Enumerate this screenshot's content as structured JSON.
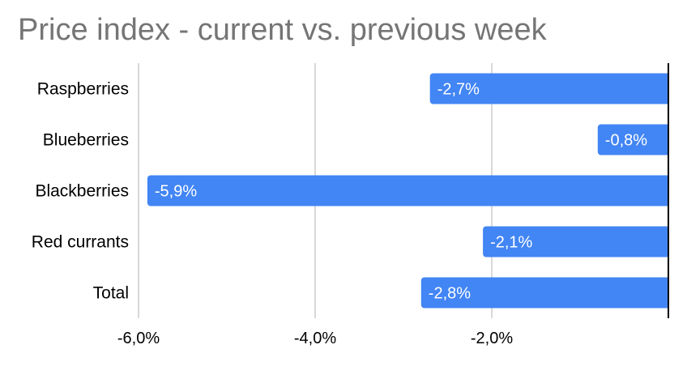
{
  "chart_data": {
    "type": "bar",
    "orientation": "horizontal",
    "title": "Price index - current vs. previous week",
    "categories": [
      "Raspberries",
      "Blueberries",
      "Blackberries",
      "Red currants",
      "Total"
    ],
    "values": [
      -2.7,
      -0.8,
      -5.9,
      -2.1,
      -2.8
    ],
    "data_labels": [
      "-2,7%",
      "-0,8%",
      "-5,9%",
      "-2,1%",
      "-2,8%"
    ],
    "x_ticks": [
      {
        "value": -6,
        "label": "-6,0%"
      },
      {
        "value": -4,
        "label": "-4,0%"
      },
      {
        "value": -2,
        "label": "-2,0%"
      }
    ],
    "xlim": [
      -6,
      0
    ],
    "grid": true,
    "legend": "none",
    "bar_color": "#4285f4",
    "title_color": "#757575",
    "grid_color": "#cccccc",
    "axis_color": "#000000"
  }
}
